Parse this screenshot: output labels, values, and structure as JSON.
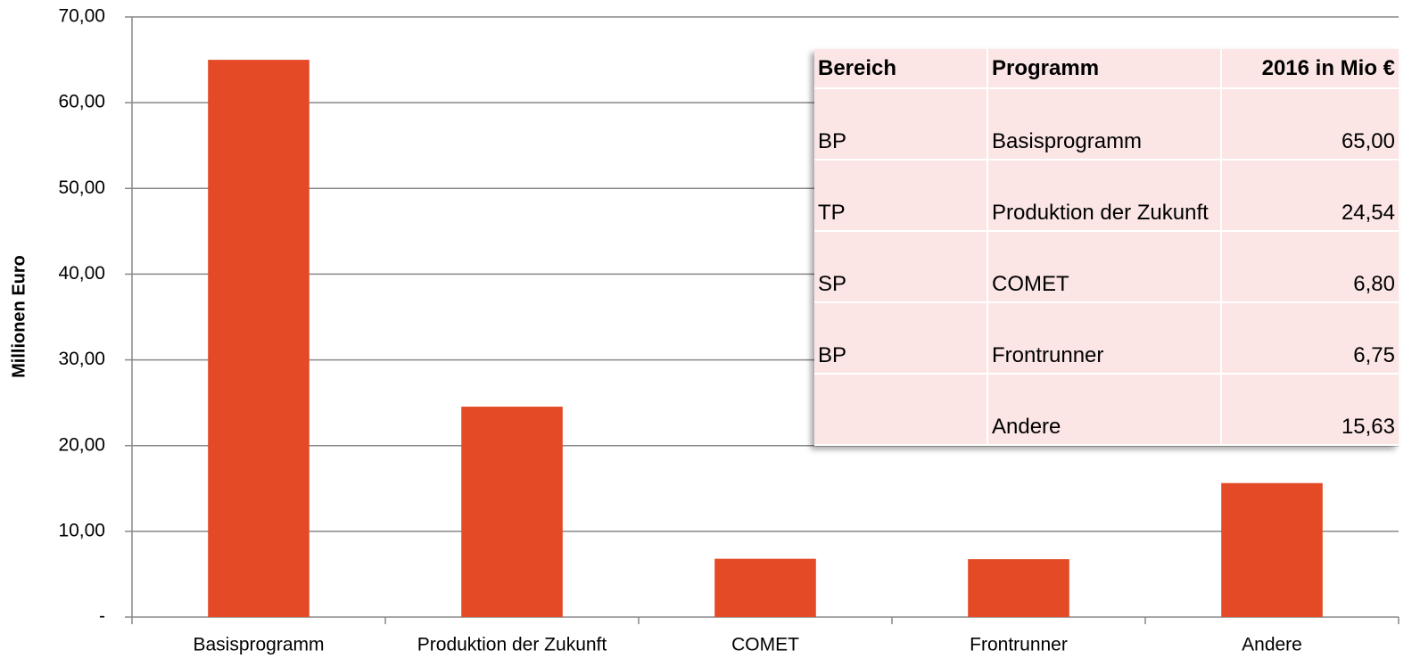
{
  "chart_data": {
    "type": "bar",
    "y_label": "Millionen Euro",
    "categories": [
      "Basisprogramm",
      "Produktion der Zukunft",
      "COMET",
      "Frontrunner",
      "Andere"
    ],
    "values": [
      65.0,
      24.54,
      6.8,
      6.75,
      15.63
    ],
    "color": "#e34a25",
    "ylim": [
      0,
      70
    ],
    "yticks": [
      {
        "value": 0,
        "label": "-"
      },
      {
        "value": 10,
        "label": "10,00"
      },
      {
        "value": 20,
        "label": "20,00"
      },
      {
        "value": 30,
        "label": "30,00"
      },
      {
        "value": 40,
        "label": "40,00"
      },
      {
        "value": 50,
        "label": "50,00"
      },
      {
        "value": 60,
        "label": "60,00"
      },
      {
        "value": 70,
        "label": "70,00"
      }
    ],
    "grid": true
  },
  "table": {
    "header": [
      "Bereich",
      "Programm",
      "2016 in Mio €"
    ],
    "rows": [
      [
        "BP",
        "Basisprogramm",
        "65,00"
      ],
      [
        "TP",
        "Produktion der Zukunft",
        "24,54"
      ],
      [
        "SP",
        "COMET",
        "6,80"
      ],
      [
        "BP",
        "Frontrunner",
        "6,75"
      ],
      [
        null,
        "Andere",
        "15,63"
      ]
    ]
  }
}
